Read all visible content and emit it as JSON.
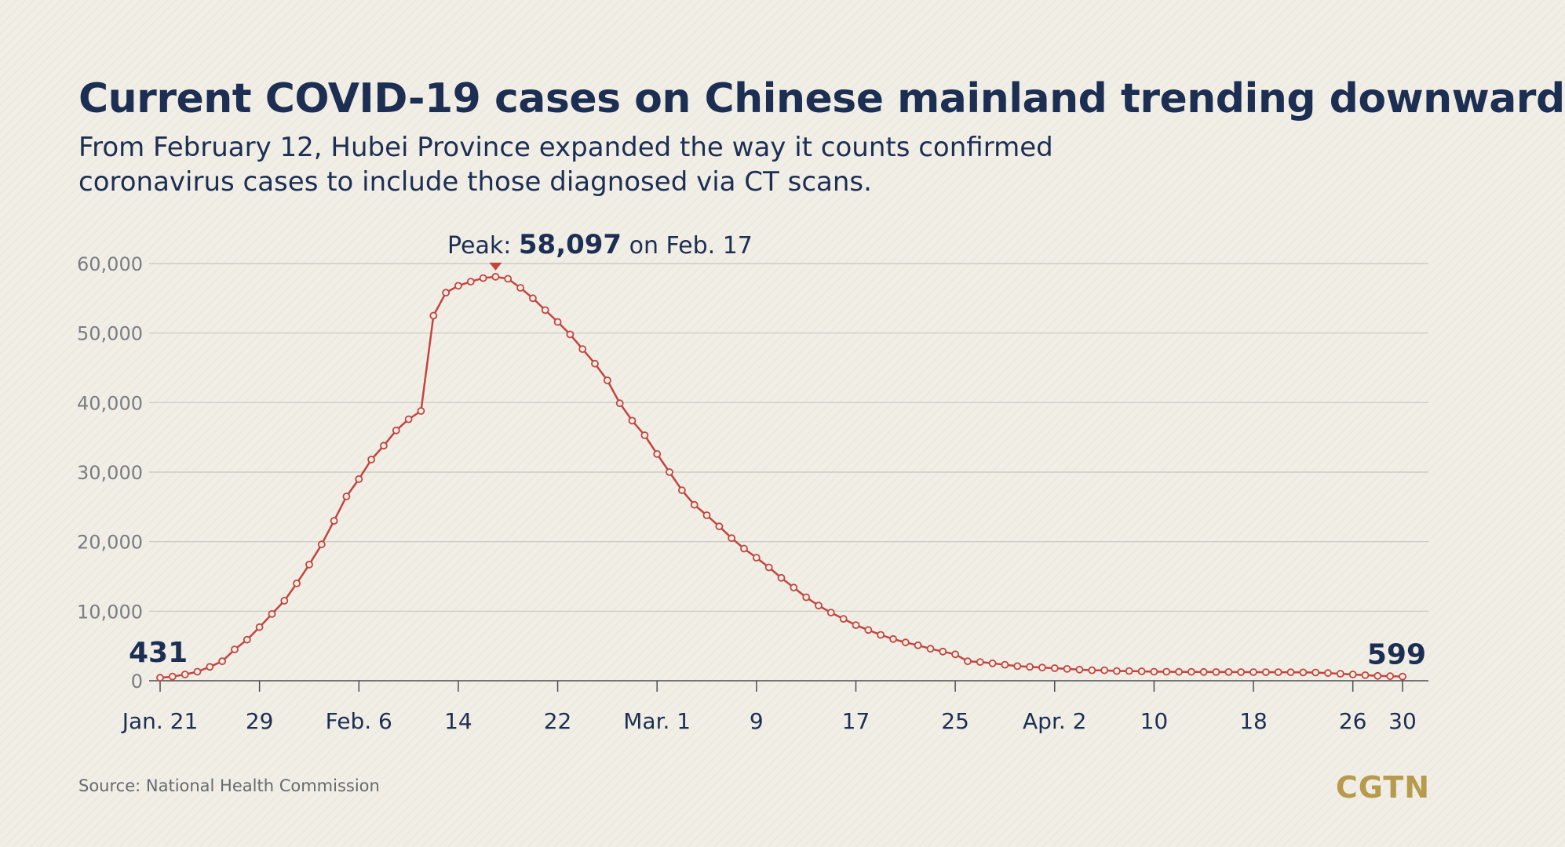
{
  "title": "Current COVID-19 cases on Chinese mainland trending downward",
  "subtitle": "From February 12, Hubei Province expanded the way it counts confirmed coronavirus cases to include those diagnosed via CT scans.",
  "source": "Source: National Health Commission",
  "logo": "CGTN",
  "colors": {
    "line": "#c0463f",
    "marker_fill": "#f1eee6",
    "title": "#1c2e52",
    "grid": "#c9c6bf",
    "logo": "#b79a4c"
  },
  "chart_data": {
    "type": "line",
    "title": "Current COVID-19 cases on Chinese mainland trending downward",
    "ylim": [
      0,
      60000
    ],
    "yticks": [
      0,
      10000,
      20000,
      30000,
      40000,
      50000,
      60000
    ],
    "ytick_labels": [
      "0",
      "10,000",
      "20,000",
      "30,000",
      "40,000",
      "50,000",
      "60,000"
    ],
    "x_start": "2020-01-21",
    "x_end": "2020-04-30",
    "xtick_labels": [
      {
        "date": "2020-01-21",
        "label": "Jan. 21"
      },
      {
        "date": "2020-01-29",
        "label": "29"
      },
      {
        "date": "2020-02-06",
        "label": "Feb. 6"
      },
      {
        "date": "2020-02-14",
        "label": "14"
      },
      {
        "date": "2020-02-22",
        "label": "22"
      },
      {
        "date": "2020-03-01",
        "label": "Mar. 1"
      },
      {
        "date": "2020-03-09",
        "label": "9"
      },
      {
        "date": "2020-03-17",
        "label": "17"
      },
      {
        "date": "2020-03-25",
        "label": "25"
      },
      {
        "date": "2020-04-02",
        "label": "Apr. 2"
      },
      {
        "date": "2020-04-10",
        "label": "10"
      },
      {
        "date": "2020-04-18",
        "label": "18"
      },
      {
        "date": "2020-04-26",
        "label": "26"
      },
      {
        "date": "2020-04-30",
        "label": "30"
      }
    ],
    "series": [
      {
        "values": [
          431,
          600,
          900,
          1300,
          2000,
          2800,
          4500,
          5900,
          7700,
          9600,
          11500,
          14000,
          16700,
          19600,
          23000,
          26500,
          29000,
          31800,
          33800,
          36000,
          37600,
          38800,
          52500,
          55800,
          56800,
          57400,
          57900,
          58097,
          57800,
          56500,
          55000,
          53300,
          51600,
          49800,
          47700,
          45600,
          43200,
          39900,
          37400,
          35300,
          32600,
          30000,
          27400,
          25300,
          23800,
          22200,
          20500,
          19000,
          17700,
          16300,
          14800,
          13400,
          12000,
          10800,
          9800,
          8900,
          8000,
          7300,
          6600,
          6000,
          5500,
          5100,
          4600,
          4200,
          3800,
          2800,
          2700,
          2500,
          2300,
          2100,
          2000,
          1900,
          1800,
          1700,
          1600,
          1500,
          1500,
          1400,
          1400,
          1350,
          1300,
          1300,
          1280,
          1270,
          1260,
          1250,
          1250,
          1240,
          1240,
          1230,
          1230,
          1220,
          1200,
          1180,
          1100,
          1000,
          900,
          800,
          700,
          650,
          599
        ]
      }
    ],
    "annotations": {
      "peak": {
        "prefix": "Peak: ",
        "value": "58,097",
        "suffix": " on Feb. 17",
        "date": "2020-02-17",
        "y": 58097
      },
      "start": {
        "label": "431",
        "date": "2020-01-21",
        "y": 431
      },
      "end": {
        "label": "599",
        "date": "2020-04-30",
        "y": 599
      }
    },
    "grid": true
  }
}
